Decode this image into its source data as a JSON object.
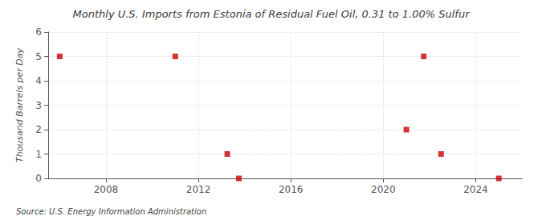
{
  "chart_data": {
    "type": "scatter",
    "title": "Monthly U.S. Imports from Estonia of Residual Fuel Oil, 0.31 to 1.00% Sulfur",
    "ylabel": "Thousand Barrels per Day",
    "annotation": "Source: U.S. Energy Information Administration",
    "x": [
      2006.0,
      2011.0,
      2013.25,
      2013.75,
      2021.0,
      2021.75,
      2022.5,
      2025.0
    ],
    "values": [
      5,
      5,
      1,
      0,
      2,
      5,
      1,
      0
    ],
    "color": "#cc0000",
    "marker": "square",
    "xlim": [
      2005.5,
      2026
    ],
    "xticks": [
      2008,
      2012,
      2016,
      2020,
      2024
    ],
    "ylim": [
      0,
      6
    ],
    "yticks": [
      0,
      1,
      2,
      3,
      4,
      5,
      6
    ],
    "grid": true
  }
}
